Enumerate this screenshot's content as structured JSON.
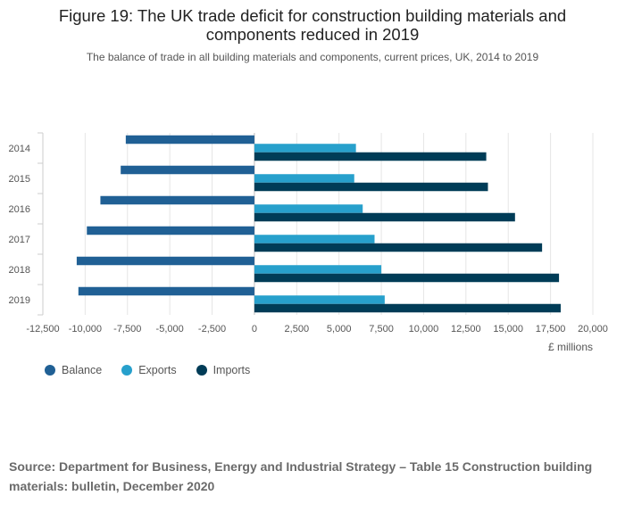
{
  "title": "Figure 19: The UK trade deficit for construction building materials and components reduced in 2019",
  "subtitle": "The balance of trade in all building materials and components, current prices, UK, 2014 to 2019",
  "source": "Source: Department for Business, Energy and Industrial Strategy – Table 15 Construction building materials: bulletin, December 2020",
  "chart_data": {
    "type": "bar",
    "orientation": "horizontal",
    "title": "Figure 19: The UK trade deficit for construction building materials and components reduced in 2019",
    "subtitle": "The balance of trade in all building materials and components, current prices, UK, 2014 to 2019",
    "xlabel": "£ millions",
    "ylabel": "",
    "xlim": [
      -12500,
      20000
    ],
    "xticks": [
      -12500,
      -10000,
      -7500,
      -5000,
      -2500,
      0,
      2500,
      5000,
      7500,
      10000,
      12500,
      15000,
      17500,
      20000
    ],
    "xtick_labels": [
      "-12,500",
      "-10,000",
      "-7,500",
      "-5,000",
      "-2,500",
      "0",
      "2,500",
      "5,000",
      "7,500",
      "10,000",
      "12,500",
      "15,000",
      "17,500",
      "20,000"
    ],
    "grid": true,
    "legend_position": "bottom-left",
    "categories": [
      "2014",
      "2015",
      "2016",
      "2017",
      "2018",
      "2019"
    ],
    "series": [
      {
        "name": "Balance",
        "color": "#206095",
        "values": [
          -7600,
          -7900,
          -9100,
          -9900,
          -10500,
          -10400
        ]
      },
      {
        "name": "Exports",
        "color": "#27a0cc",
        "values": [
          6000,
          5900,
          6400,
          7100,
          7500,
          7700
        ]
      },
      {
        "name": "Imports",
        "color": "#003c57",
        "values": [
          13700,
          13800,
          15400,
          17000,
          18000,
          18100
        ]
      }
    ]
  }
}
